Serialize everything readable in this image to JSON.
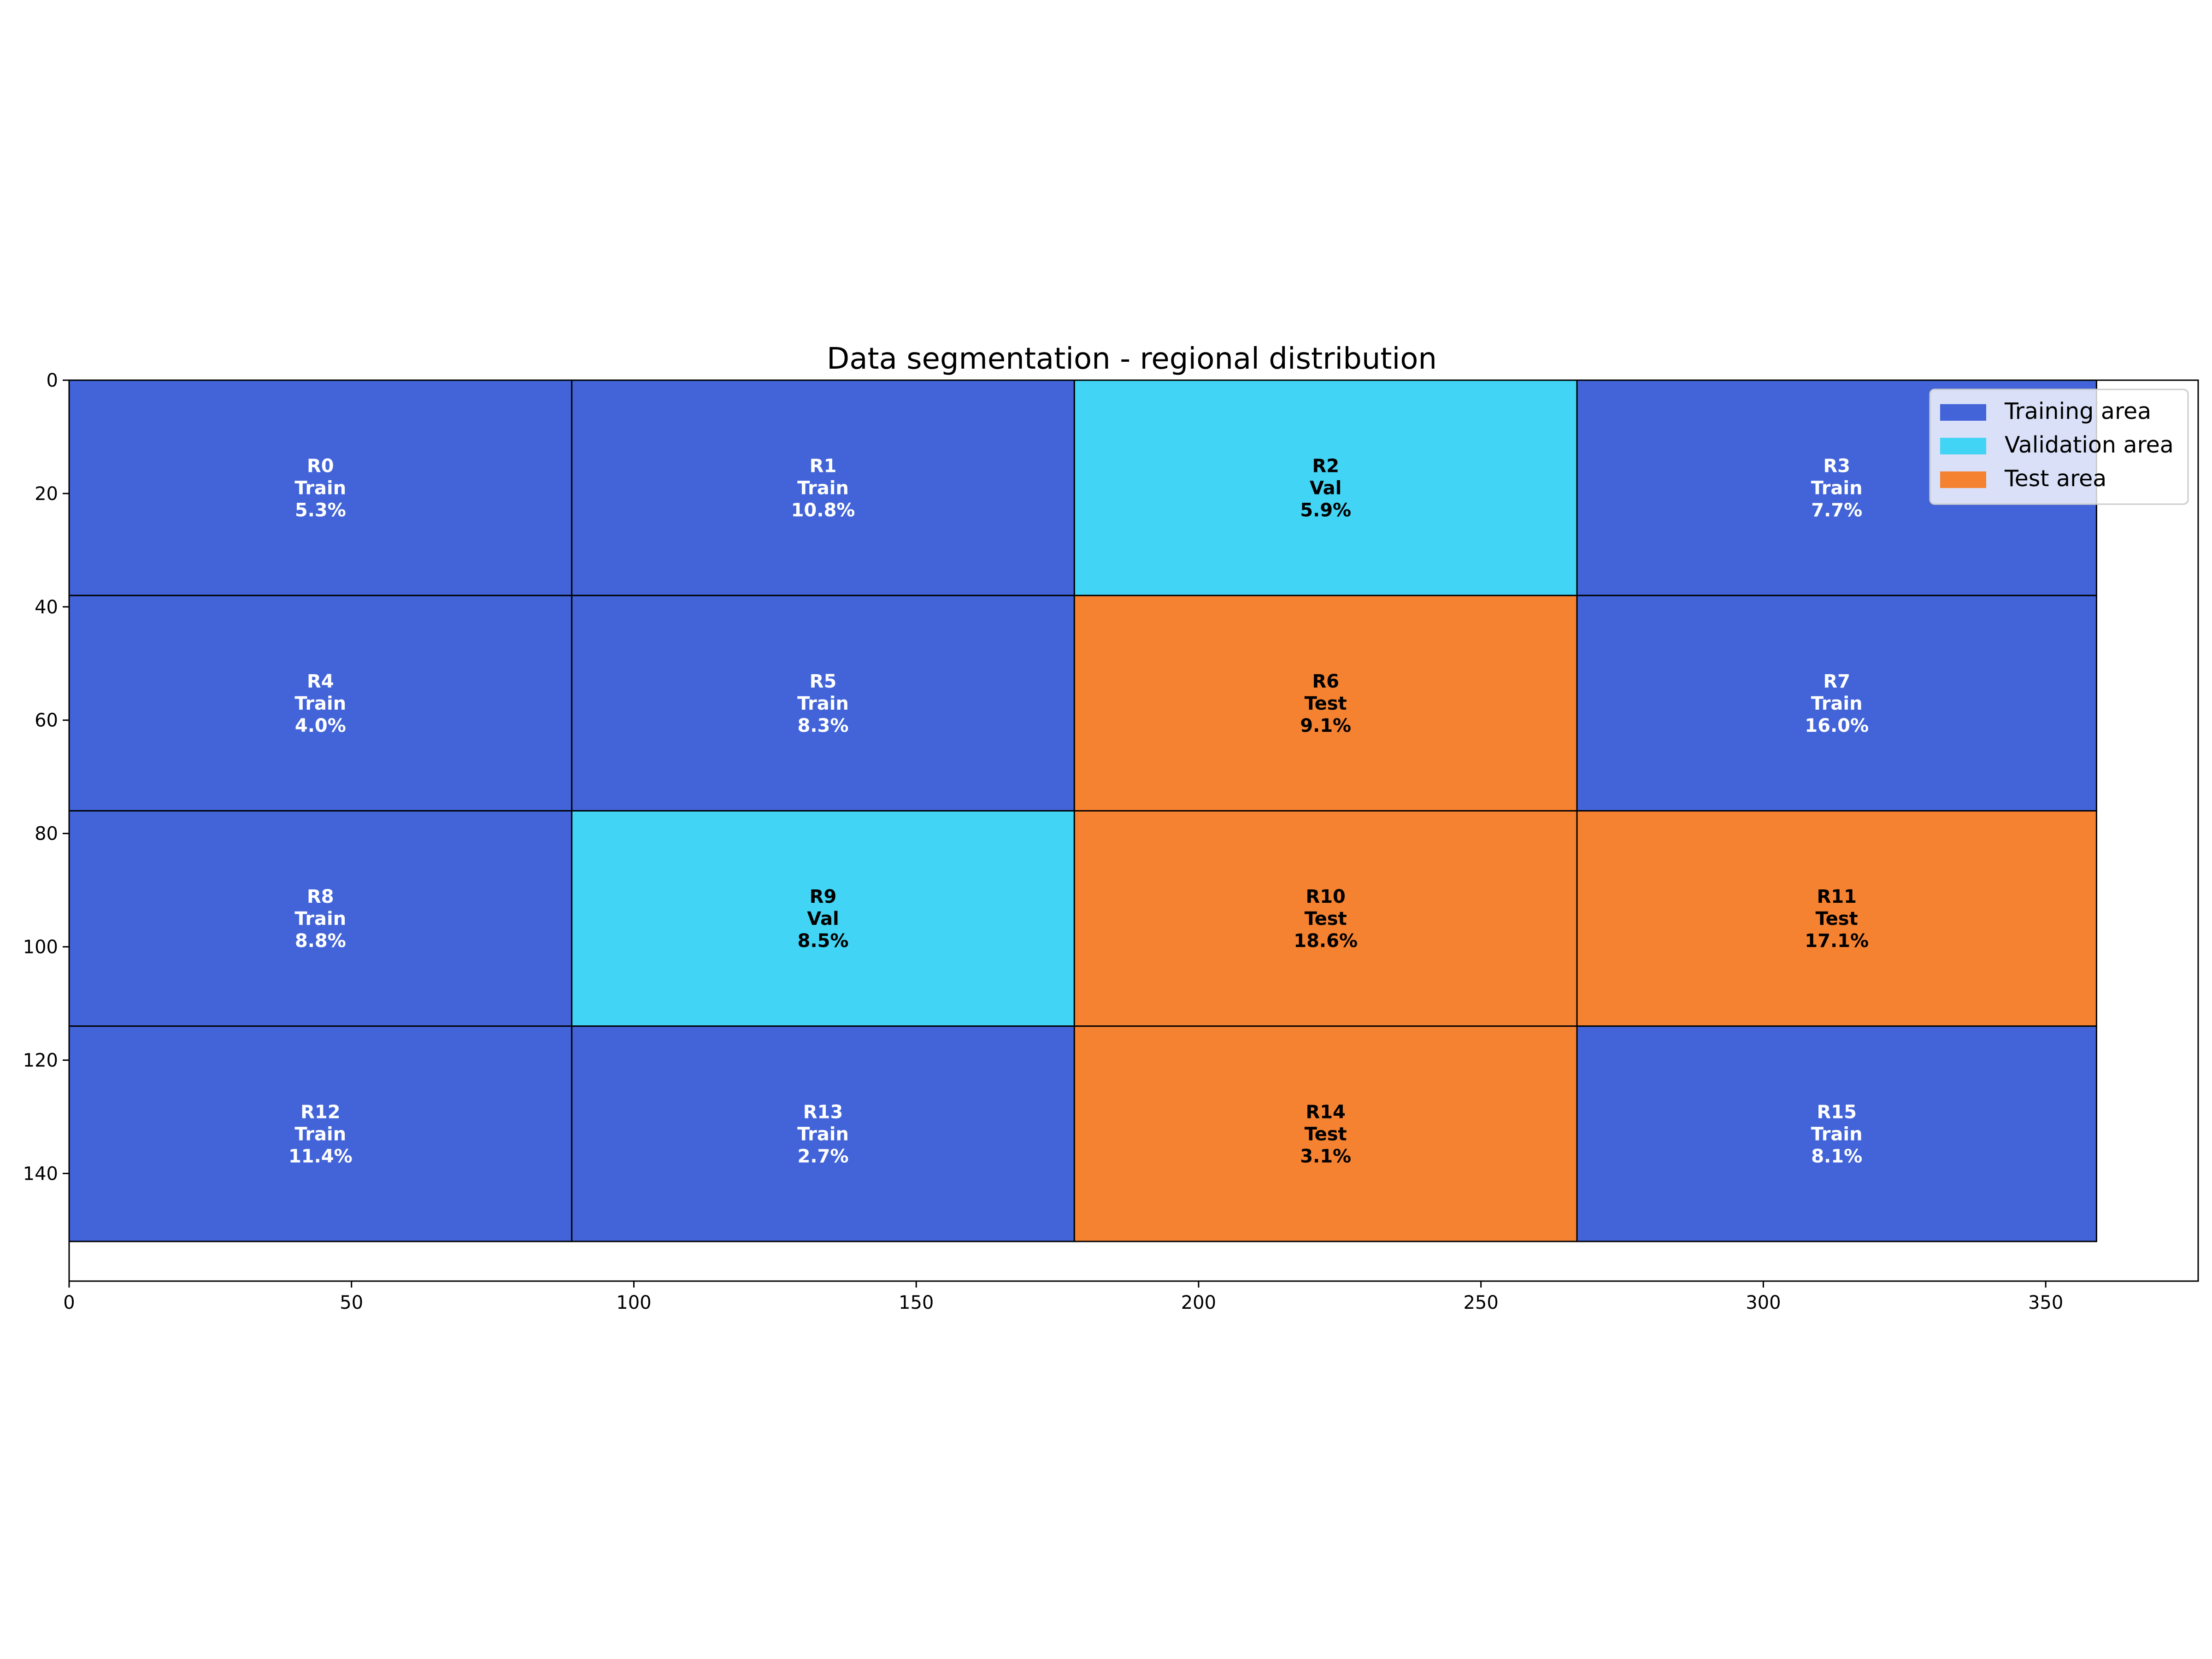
{
  "chart_data": {
    "type": "heatmap",
    "title": "Data segmentation - regional distribution",
    "xlabel": "",
    "ylabel": "",
    "xlim": [
      0,
      377
    ],
    "ylim": [
      159,
      0
    ],
    "x_ticks": [
      0,
      50,
      100,
      150,
      200,
      250,
      300,
      350
    ],
    "y_ticks": [
      0,
      20,
      40,
      60,
      80,
      100,
      120,
      140
    ],
    "grid": false,
    "legend_position": "top-right",
    "colors": {
      "train": "#4264d8",
      "val": "#42d4f4",
      "test": "#f58231"
    },
    "legend": [
      {
        "key": "train",
        "label": "Training area"
      },
      {
        "key": "val",
        "label": "Validation area"
      },
      {
        "key": "test",
        "label": "Test area"
      }
    ],
    "regions": [
      {
        "id": "R0",
        "split": "train",
        "split_label": "Train",
        "share": "5.3%",
        "x0": 0,
        "x1": 89,
        "y0": 0,
        "y1": 38
      },
      {
        "id": "R1",
        "split": "train",
        "split_label": "Train",
        "share": "10.8%",
        "x0": 89,
        "x1": 178,
        "y0": 0,
        "y1": 38
      },
      {
        "id": "R2",
        "split": "val",
        "split_label": "Val",
        "share": "5.9%",
        "x0": 178,
        "x1": 267,
        "y0": 0,
        "y1": 38
      },
      {
        "id": "R3",
        "split": "train",
        "split_label": "Train",
        "share": "7.7%",
        "x0": 267,
        "x1": 359,
        "y0": 0,
        "y1": 38
      },
      {
        "id": "R4",
        "split": "train",
        "split_label": "Train",
        "share": "4.0%",
        "x0": 0,
        "x1": 89,
        "y0": 38,
        "y1": 76
      },
      {
        "id": "R5",
        "split": "train",
        "split_label": "Train",
        "share": "8.3%",
        "x0": 89,
        "x1": 178,
        "y0": 38,
        "y1": 76
      },
      {
        "id": "R6",
        "split": "test",
        "split_label": "Test",
        "share": "9.1%",
        "x0": 178,
        "x1": 267,
        "y0": 38,
        "y1": 76
      },
      {
        "id": "R7",
        "split": "train",
        "split_label": "Train",
        "share": "16.0%",
        "x0": 267,
        "x1": 359,
        "y0": 38,
        "y1": 76
      },
      {
        "id": "R8",
        "split": "train",
        "split_label": "Train",
        "share": "8.8%",
        "x0": 0,
        "x1": 89,
        "y0": 76,
        "y1": 114
      },
      {
        "id": "R9",
        "split": "val",
        "split_label": "Val",
        "share": "8.5%",
        "x0": 89,
        "x1": 178,
        "y0": 76,
        "y1": 114
      },
      {
        "id": "R10",
        "split": "test",
        "split_label": "Test",
        "share": "18.6%",
        "x0": 178,
        "x1": 267,
        "y0": 76,
        "y1": 114
      },
      {
        "id": "R11",
        "split": "test",
        "split_label": "Test",
        "share": "17.1%",
        "x0": 267,
        "x1": 359,
        "y0": 76,
        "y1": 114
      },
      {
        "id": "R12",
        "split": "train",
        "split_label": "Train",
        "share": "11.4%",
        "x0": 0,
        "x1": 89,
        "y0": 114,
        "y1": 152
      },
      {
        "id": "R13",
        "split": "train",
        "split_label": "Train",
        "share": "2.7%",
        "x0": 89,
        "x1": 178,
        "y0": 114,
        "y1": 152
      },
      {
        "id": "R14",
        "split": "test",
        "split_label": "Test",
        "share": "3.1%",
        "x0": 178,
        "x1": 267,
        "y0": 114,
        "y1": 152
      },
      {
        "id": "R15",
        "split": "train",
        "split_label": "Train",
        "share": "8.1%",
        "x0": 267,
        "x1": 359,
        "y0": 114,
        "y1": 152
      }
    ]
  }
}
